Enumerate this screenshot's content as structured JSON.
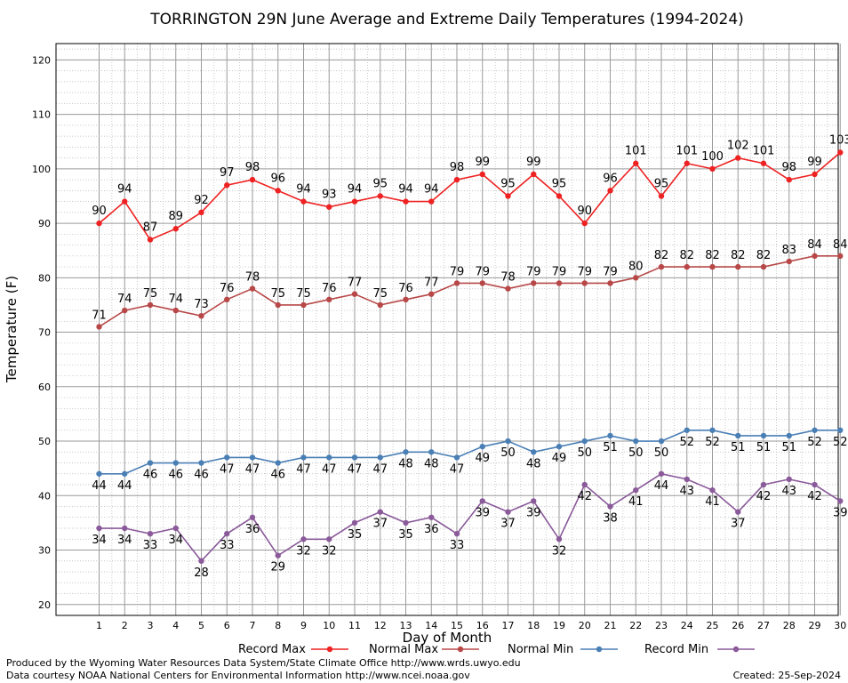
{
  "chart_data": {
    "type": "line",
    "title": "TORRINGTON 29N June Average and Extreme Daily Temperatures (1994-2024)",
    "xlabel": "Day of Month",
    "ylabel": "Temperature (F)",
    "ylim": [
      18,
      123
    ],
    "y_ticks": [
      20,
      30,
      40,
      50,
      60,
      70,
      80,
      90,
      100,
      110,
      120
    ],
    "grid": true,
    "legend_position": "bottom",
    "x": [
      1,
      2,
      3,
      4,
      5,
      6,
      7,
      8,
      9,
      10,
      11,
      12,
      13,
      14,
      15,
      16,
      17,
      18,
      19,
      20,
      21,
      22,
      23,
      24,
      25,
      26,
      27,
      28,
      29,
      30
    ],
    "series": [
      {
        "name": "Record Max",
        "color": "#ee2222",
        "values": [
          90,
          94,
          87,
          89,
          92,
          97,
          98,
          96,
          94,
          93,
          94,
          95,
          94,
          94,
          98,
          99,
          95,
          99,
          95,
          90,
          96,
          101,
          95,
          101,
          100,
          102,
          101,
          98,
          99,
          103
        ]
      },
      {
        "name": "Normal Max",
        "color": "#b84848",
        "values": [
          71,
          74,
          75,
          74,
          73,
          76,
          78,
          75,
          75,
          76,
          77,
          75,
          76,
          77,
          79,
          79,
          78,
          79,
          79,
          79,
          79,
          80,
          82,
          82,
          82,
          82,
          82,
          83,
          84,
          84
        ]
      },
      {
        "name": "Normal Min",
        "color": "#4a7fb5",
        "values": [
          44,
          44,
          46,
          46,
          46,
          47,
          47,
          46,
          47,
          47,
          47,
          47,
          48,
          48,
          47,
          49,
          50,
          48,
          49,
          50,
          51,
          50,
          50,
          52,
          52,
          51,
          51,
          51,
          52,
          52
        ]
      },
      {
        "name": "Record Min",
        "color": "#8a5a9a",
        "values": [
          34,
          34,
          33,
          34,
          28,
          33,
          36,
          29,
          32,
          32,
          35,
          37,
          35,
          36,
          33,
          39,
          37,
          39,
          32,
          42,
          38,
          41,
          44,
          43,
          41,
          37,
          42,
          43,
          42,
          39
        ]
      }
    ]
  },
  "footer": {
    "produced_by": "Produced by the Wyoming Water Resources Data System/State Climate Office http://www.wrds.uwyo.edu",
    "data_courtesy": "Data courtesy NOAA National Centers for Environmental Information http://www.ncei.noaa.gov",
    "created": "Created:  25-Sep-2024"
  }
}
